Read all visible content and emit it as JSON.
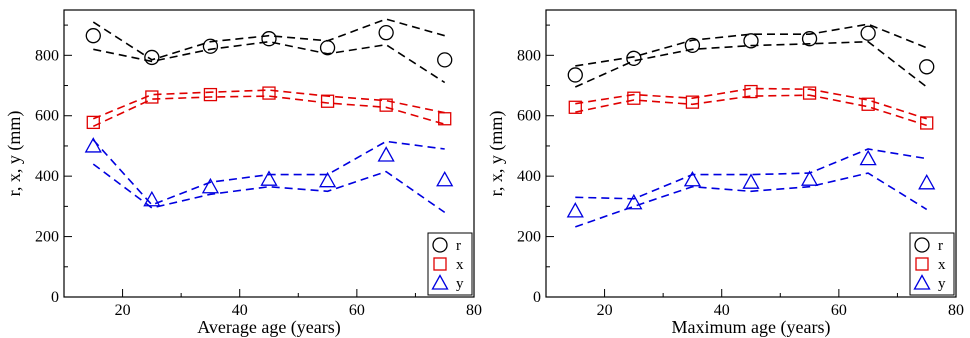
{
  "chart_data": [
    {
      "type": "scatter",
      "xlabel": "Average age (years)",
      "ylabel": "r, x, y (mm)",
      "xlim": [
        10,
        80
      ],
      "ylim": [
        0,
        950
      ],
      "xticks": [
        20,
        40,
        60,
        80
      ],
      "yticks": [
        0,
        200,
        400,
        600,
        800
      ],
      "grid": false,
      "legend_position": "bottom-right",
      "series": [
        {
          "name": "r",
          "color": "#000000",
          "marker": "circle",
          "x": [
            15,
            25,
            35,
            45,
            55,
            65,
            75
          ],
          "y": [
            865,
            793,
            830,
            855,
            825,
            875,
            785
          ],
          "band_upper": [
            910,
            785,
            845,
            865,
            848,
            920,
            865
          ],
          "band_lower": [
            820,
            780,
            820,
            845,
            805,
            835,
            710
          ]
        },
        {
          "name": "x",
          "color": "#e00000",
          "marker": "square",
          "x": [
            15,
            25,
            35,
            45,
            55,
            65,
            75
          ],
          "y": [
            578,
            662,
            670,
            675,
            648,
            635,
            590
          ],
          "band_upper": [
            590,
            670,
            678,
            685,
            665,
            650,
            610
          ],
          "band_lower": [
            565,
            655,
            662,
            665,
            642,
            628,
            572
          ]
        },
        {
          "name": "y",
          "color": "#0000e0",
          "marker": "triangle",
          "x": [
            15,
            25,
            35,
            45,
            55,
            65,
            75
          ],
          "y": [
            500,
            322,
            365,
            390,
            385,
            470,
            388
          ],
          "band_upper": [
            520,
            305,
            380,
            405,
            405,
            515,
            490
          ],
          "band_lower": [
            440,
            295,
            340,
            365,
            350,
            415,
            280
          ]
        }
      ]
    },
    {
      "type": "scatter",
      "xlabel": "Maximum age (years)",
      "ylabel": "r, x, y (mm)",
      "xlim": [
        10,
        80
      ],
      "ylim": [
        0,
        950
      ],
      "xticks": [
        20,
        40,
        60,
        80
      ],
      "yticks": [
        0,
        200,
        400,
        600,
        800
      ],
      "grid": false,
      "legend_position": "bottom-right",
      "series": [
        {
          "name": "r",
          "color": "#000000",
          "marker": "circle",
          "x": [
            15,
            25,
            35,
            45,
            55,
            65,
            75
          ],
          "y": [
            735,
            790,
            833,
            848,
            855,
            873,
            762
          ],
          "band_upper": [
            765,
            795,
            850,
            870,
            870,
            903,
            825
          ],
          "band_lower": [
            695,
            782,
            820,
            832,
            838,
            845,
            695
          ]
        },
        {
          "name": "x",
          "color": "#e00000",
          "marker": "square",
          "x": [
            15,
            25,
            35,
            45,
            55,
            65,
            75
          ],
          "y": [
            628,
            658,
            645,
            680,
            675,
            638,
            576
          ],
          "band_upper": [
            640,
            670,
            658,
            690,
            688,
            652,
            590
          ],
          "band_lower": [
            612,
            652,
            638,
            665,
            668,
            630,
            568
          ]
        },
        {
          "name": "y",
          "color": "#0000e0",
          "marker": "triangle",
          "x": [
            15,
            25,
            35,
            45,
            55,
            65,
            75
          ],
          "y": [
            285,
            312,
            388,
            380,
            390,
            458,
            378
          ],
          "band_upper": [
            330,
            325,
            405,
            405,
            410,
            490,
            458
          ],
          "band_lower": [
            232,
            300,
            365,
            350,
            365,
            410,
            290
          ]
        }
      ]
    }
  ]
}
